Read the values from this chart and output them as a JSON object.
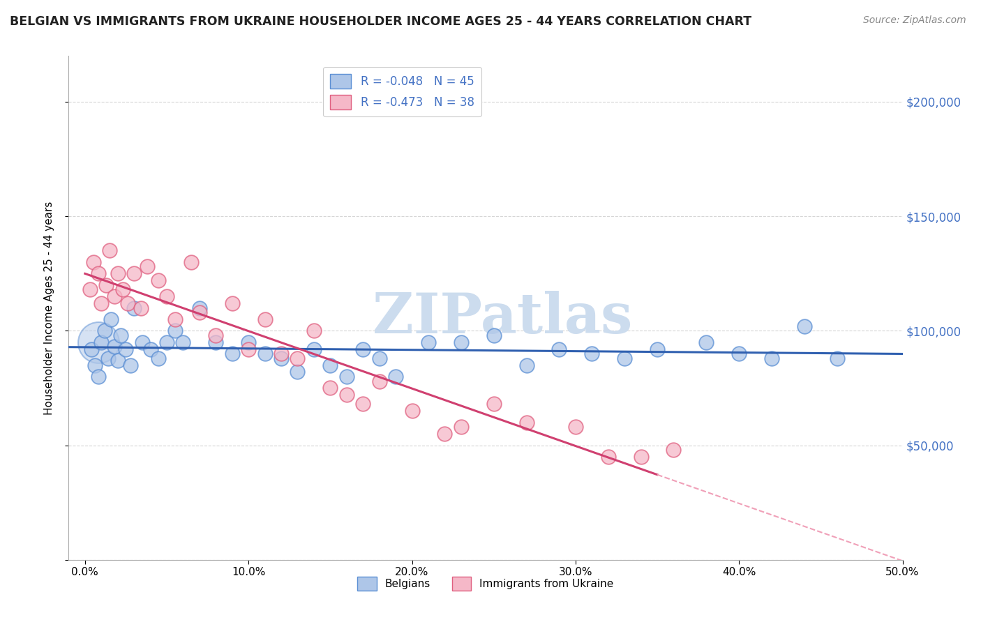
{
  "title": "BELGIAN VS IMMIGRANTS FROM UKRAINE HOUSEHOLDER INCOME AGES 25 - 44 YEARS CORRELATION CHART",
  "source": "Source: ZipAtlas.com",
  "ylabel": "Householder Income Ages 25 - 44 years",
  "xlim": [
    -1.0,
    50.0
  ],
  "ylim": [
    0,
    220000
  ],
  "yticks": [
    0,
    50000,
    100000,
    150000,
    200000
  ],
  "ytick_labels_right": [
    "",
    "$50,000",
    "$100,000",
    "$150,000",
    "$200,000"
  ],
  "xticks": [
    0.0,
    10.0,
    20.0,
    30.0,
    40.0,
    50.0
  ],
  "xtick_labels": [
    "0.0%",
    "10.0%",
    "20.0%",
    "30.0%",
    "40.0%",
    "50.0%"
  ],
  "belgian_R": "-0.048",
  "belgian_N": "45",
  "ukraine_R": "-0.473",
  "ukraine_N": "38",
  "belgian_color_face": "#aec6e8",
  "belgian_color_edge": "#5b8fd4",
  "ukraine_color_face": "#f5b8c8",
  "ukraine_color_edge": "#e06080",
  "belgian_line_color": "#3060b0",
  "ukraine_line_color": "#d04070",
  "dashed_line_color": "#f0a0b8",
  "watermark": "ZIPatlas",
  "watermark_color": "#ccdcee",
  "belgians_x": [
    0.4,
    0.6,
    0.8,
    1.0,
    1.2,
    1.4,
    1.6,
    1.8,
    2.0,
    2.2,
    2.5,
    2.8,
    3.0,
    3.5,
    4.0,
    4.5,
    5.0,
    5.5,
    6.0,
    7.0,
    8.0,
    9.0,
    10.0,
    11.0,
    12.0,
    13.0,
    14.0,
    15.0,
    16.0,
    17.0,
    18.0,
    19.0,
    21.0,
    23.0,
    25.0,
    27.0,
    29.0,
    31.0,
    33.0,
    35.0,
    38.0,
    40.0,
    42.0,
    44.0,
    46.0
  ],
  "belgians_y": [
    92000,
    85000,
    80000,
    95000,
    100000,
    88000,
    105000,
    93000,
    87000,
    98000,
    92000,
    85000,
    110000,
    95000,
    92000,
    88000,
    95000,
    100000,
    95000,
    110000,
    95000,
    90000,
    95000,
    90000,
    88000,
    82000,
    92000,
    85000,
    80000,
    92000,
    88000,
    80000,
    95000,
    95000,
    98000,
    85000,
    92000,
    90000,
    88000,
    92000,
    95000,
    90000,
    88000,
    102000,
    88000
  ],
  "ukraine_x": [
    0.3,
    0.5,
    0.8,
    1.0,
    1.3,
    1.5,
    1.8,
    2.0,
    2.3,
    2.6,
    3.0,
    3.4,
    3.8,
    4.5,
    5.0,
    5.5,
    6.5,
    7.0,
    8.0,
    9.0,
    10.0,
    11.0,
    12.0,
    13.0,
    14.0,
    15.0,
    16.0,
    17.0,
    18.0,
    20.0,
    22.0,
    23.0,
    25.0,
    27.0,
    30.0,
    32.0,
    34.0,
    36.0
  ],
  "ukraine_y": [
    118000,
    130000,
    125000,
    112000,
    120000,
    135000,
    115000,
    125000,
    118000,
    112000,
    125000,
    110000,
    128000,
    122000,
    115000,
    105000,
    130000,
    108000,
    98000,
    112000,
    92000,
    105000,
    90000,
    88000,
    100000,
    75000,
    72000,
    68000,
    78000,
    65000,
    55000,
    58000,
    68000,
    60000,
    58000,
    45000,
    45000,
    48000
  ],
  "large_cluster_x": 0.8,
  "large_cluster_y": 95000
}
